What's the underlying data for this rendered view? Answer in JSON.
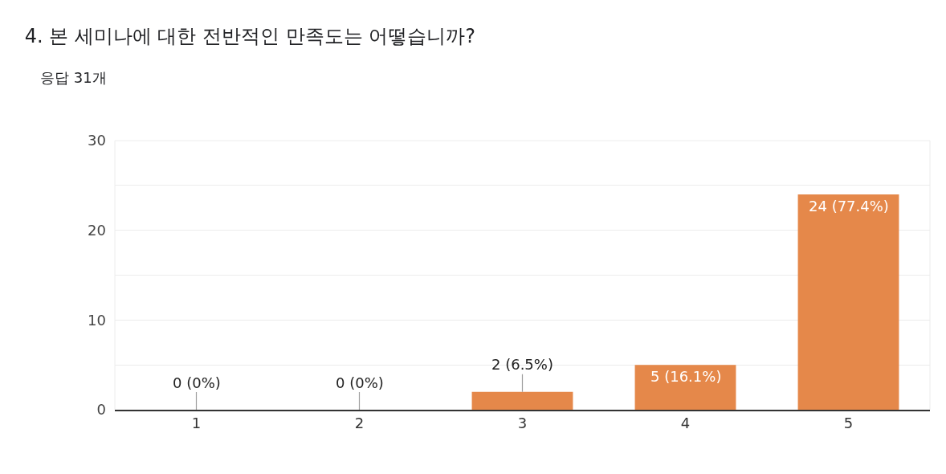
{
  "chart_data": {
    "type": "bar",
    "title": "4. 본 세미나에 대한 전반적인 만족도는 어떻습니까?",
    "subtitle": "응답 31개",
    "categories": [
      "1",
      "2",
      "3",
      "4",
      "5"
    ],
    "values": [
      0,
      0,
      2,
      5,
      24
    ],
    "value_labels": [
      "0 (0%)",
      "0 (0%)",
      "2 (6.5%)",
      "5 (16.1%)",
      "24 (77.4%)"
    ],
    "color": "#e5884a",
    "ylim": [
      0,
      30
    ],
    "yticks": [
      0,
      {
        "value": 5,
        "label": null
      },
      10,
      {
        "value": 15,
        "label": null
      },
      20,
      {
        "value": 25,
        "label": null
      },
      30
    ],
    "grid": true
  }
}
